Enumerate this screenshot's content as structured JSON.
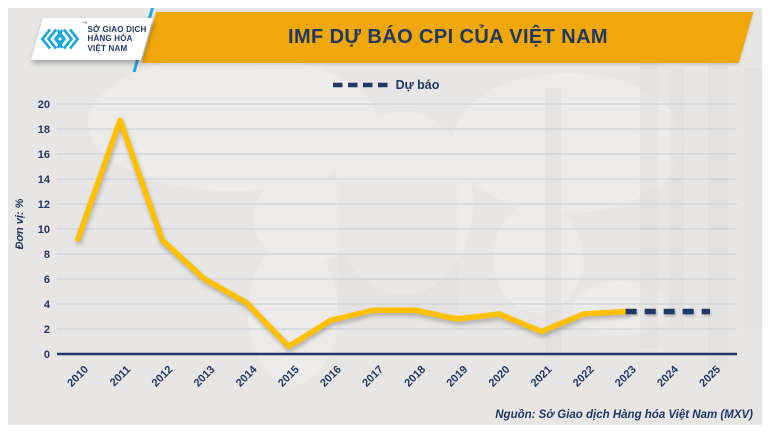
{
  "header": {
    "logo": {
      "lines": [
        "SỞ GIAO DỊCH",
        "HÀNG HÓA",
        "VIỆT NAM"
      ],
      "trademark": "™"
    }
  },
  "legend": {
    "forecast_label": "Dự báo"
  },
  "footer": {
    "source": "Nguồn: Sở Giao dịch Hàng hóa Việt Nam (MXV)"
  },
  "colors": {
    "banner_gold": "#f0a70a",
    "line_gold": "#ffc000",
    "navy": "#1f3864",
    "cyan": "#1ba7e0",
    "panel_bg": "#e7e6e4",
    "gridline": "#c4cad4"
  },
  "chart_data": {
    "type": "line",
    "title": "IMF DỰ BÁO CPI CỦA VIỆT NAM",
    "xlabel": "",
    "ylabel": "Đơn vị: %",
    "ylim": [
      0,
      20
    ],
    "ytick_step": 2,
    "grid": true,
    "legend_position": "top-center",
    "categories": [
      "2010",
      "2011",
      "2012",
      "2013",
      "2014",
      "2015",
      "2016",
      "2017",
      "2018",
      "2019",
      "2020",
      "2021",
      "2022",
      "2023",
      "2024",
      "2025"
    ],
    "series": [
      {
        "name": "CPI",
        "style": "solid",
        "color": "#ffc000",
        "values": [
          9.2,
          18.7,
          9.1,
          6.0,
          4.1,
          0.6,
          2.7,
          3.5,
          3.5,
          2.8,
          3.2,
          1.8,
          3.2,
          3.4,
          null,
          null
        ]
      },
      {
        "name": "Dự báo",
        "style": "dashed",
        "color": "#1f3864",
        "values": [
          null,
          null,
          null,
          null,
          null,
          null,
          null,
          null,
          null,
          null,
          null,
          null,
          null,
          3.4,
          3.4,
          3.4
        ]
      }
    ]
  }
}
